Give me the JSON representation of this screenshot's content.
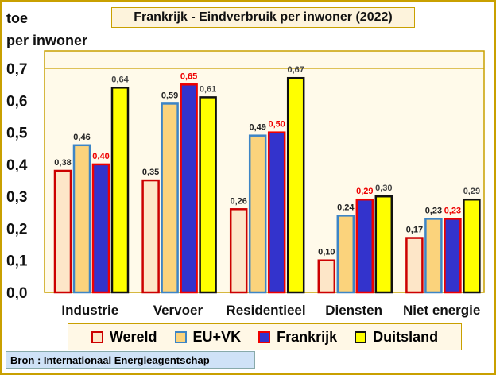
{
  "chart_data": {
    "type": "bar",
    "title": "Frankrijk - Eindverbruik per inwoner (2022)",
    "ylabel": [
      "toe",
      "per inwoner"
    ],
    "xlabel": "",
    "ylim": [
      0,
      0.755
    ],
    "yticks": [
      0,
      0.1,
      0.2,
      0.3,
      0.4,
      0.5,
      0.6,
      0.7
    ],
    "ytick_labels": [
      "0,0",
      "0,1",
      "0,2",
      "0,3",
      "0,4",
      "0,5",
      "0,6",
      "0,7"
    ],
    "grid": "horizontal at 0,7",
    "categories": [
      "Industrie",
      "Vervoer",
      "Residentieel",
      "Diensten",
      "Niet energie"
    ],
    "series": [
      {
        "name": "Wereld",
        "values": [
          0.38,
          0.35,
          0.26,
          0.1,
          0.17
        ],
        "labels": [
          "0,38",
          "0,35",
          "0,26",
          "0,10",
          "0,17"
        ],
        "fill": "#fde6c8",
        "stroke": "#cc0000",
        "label_color": "#222222"
      },
      {
        "name": "EU+VK",
        "values": [
          0.46,
          0.59,
          0.49,
          0.24,
          0.23
        ],
        "labels": [
          "0,46",
          "0,59",
          "0,49",
          "0,24",
          "0,23"
        ],
        "fill": "#fbd37c",
        "stroke": "#3d85c6",
        "label_color": "#222222"
      },
      {
        "name": "Frankrijk",
        "values": [
          0.4,
          0.65,
          0.5,
          0.29,
          0.23
        ],
        "labels": [
          "0,40",
          "0,65",
          "0,50",
          "0,29",
          "0,23"
        ],
        "fill": "#3333cc",
        "stroke": "#ee0000",
        "label_color": "#ee0000"
      },
      {
        "name": "Duitsland",
        "values": [
          0.64,
          0.61,
          0.67,
          0.3,
          0.29
        ],
        "labels": [
          "0,64",
          "0,61",
          "0,67",
          "0,30",
          "0,29"
        ],
        "fill": "#ffff00",
        "stroke": "#111111",
        "label_color": "#444444"
      }
    ],
    "legend_position": "bottom"
  },
  "source": "Bron : Internationaal Energieagentschap"
}
